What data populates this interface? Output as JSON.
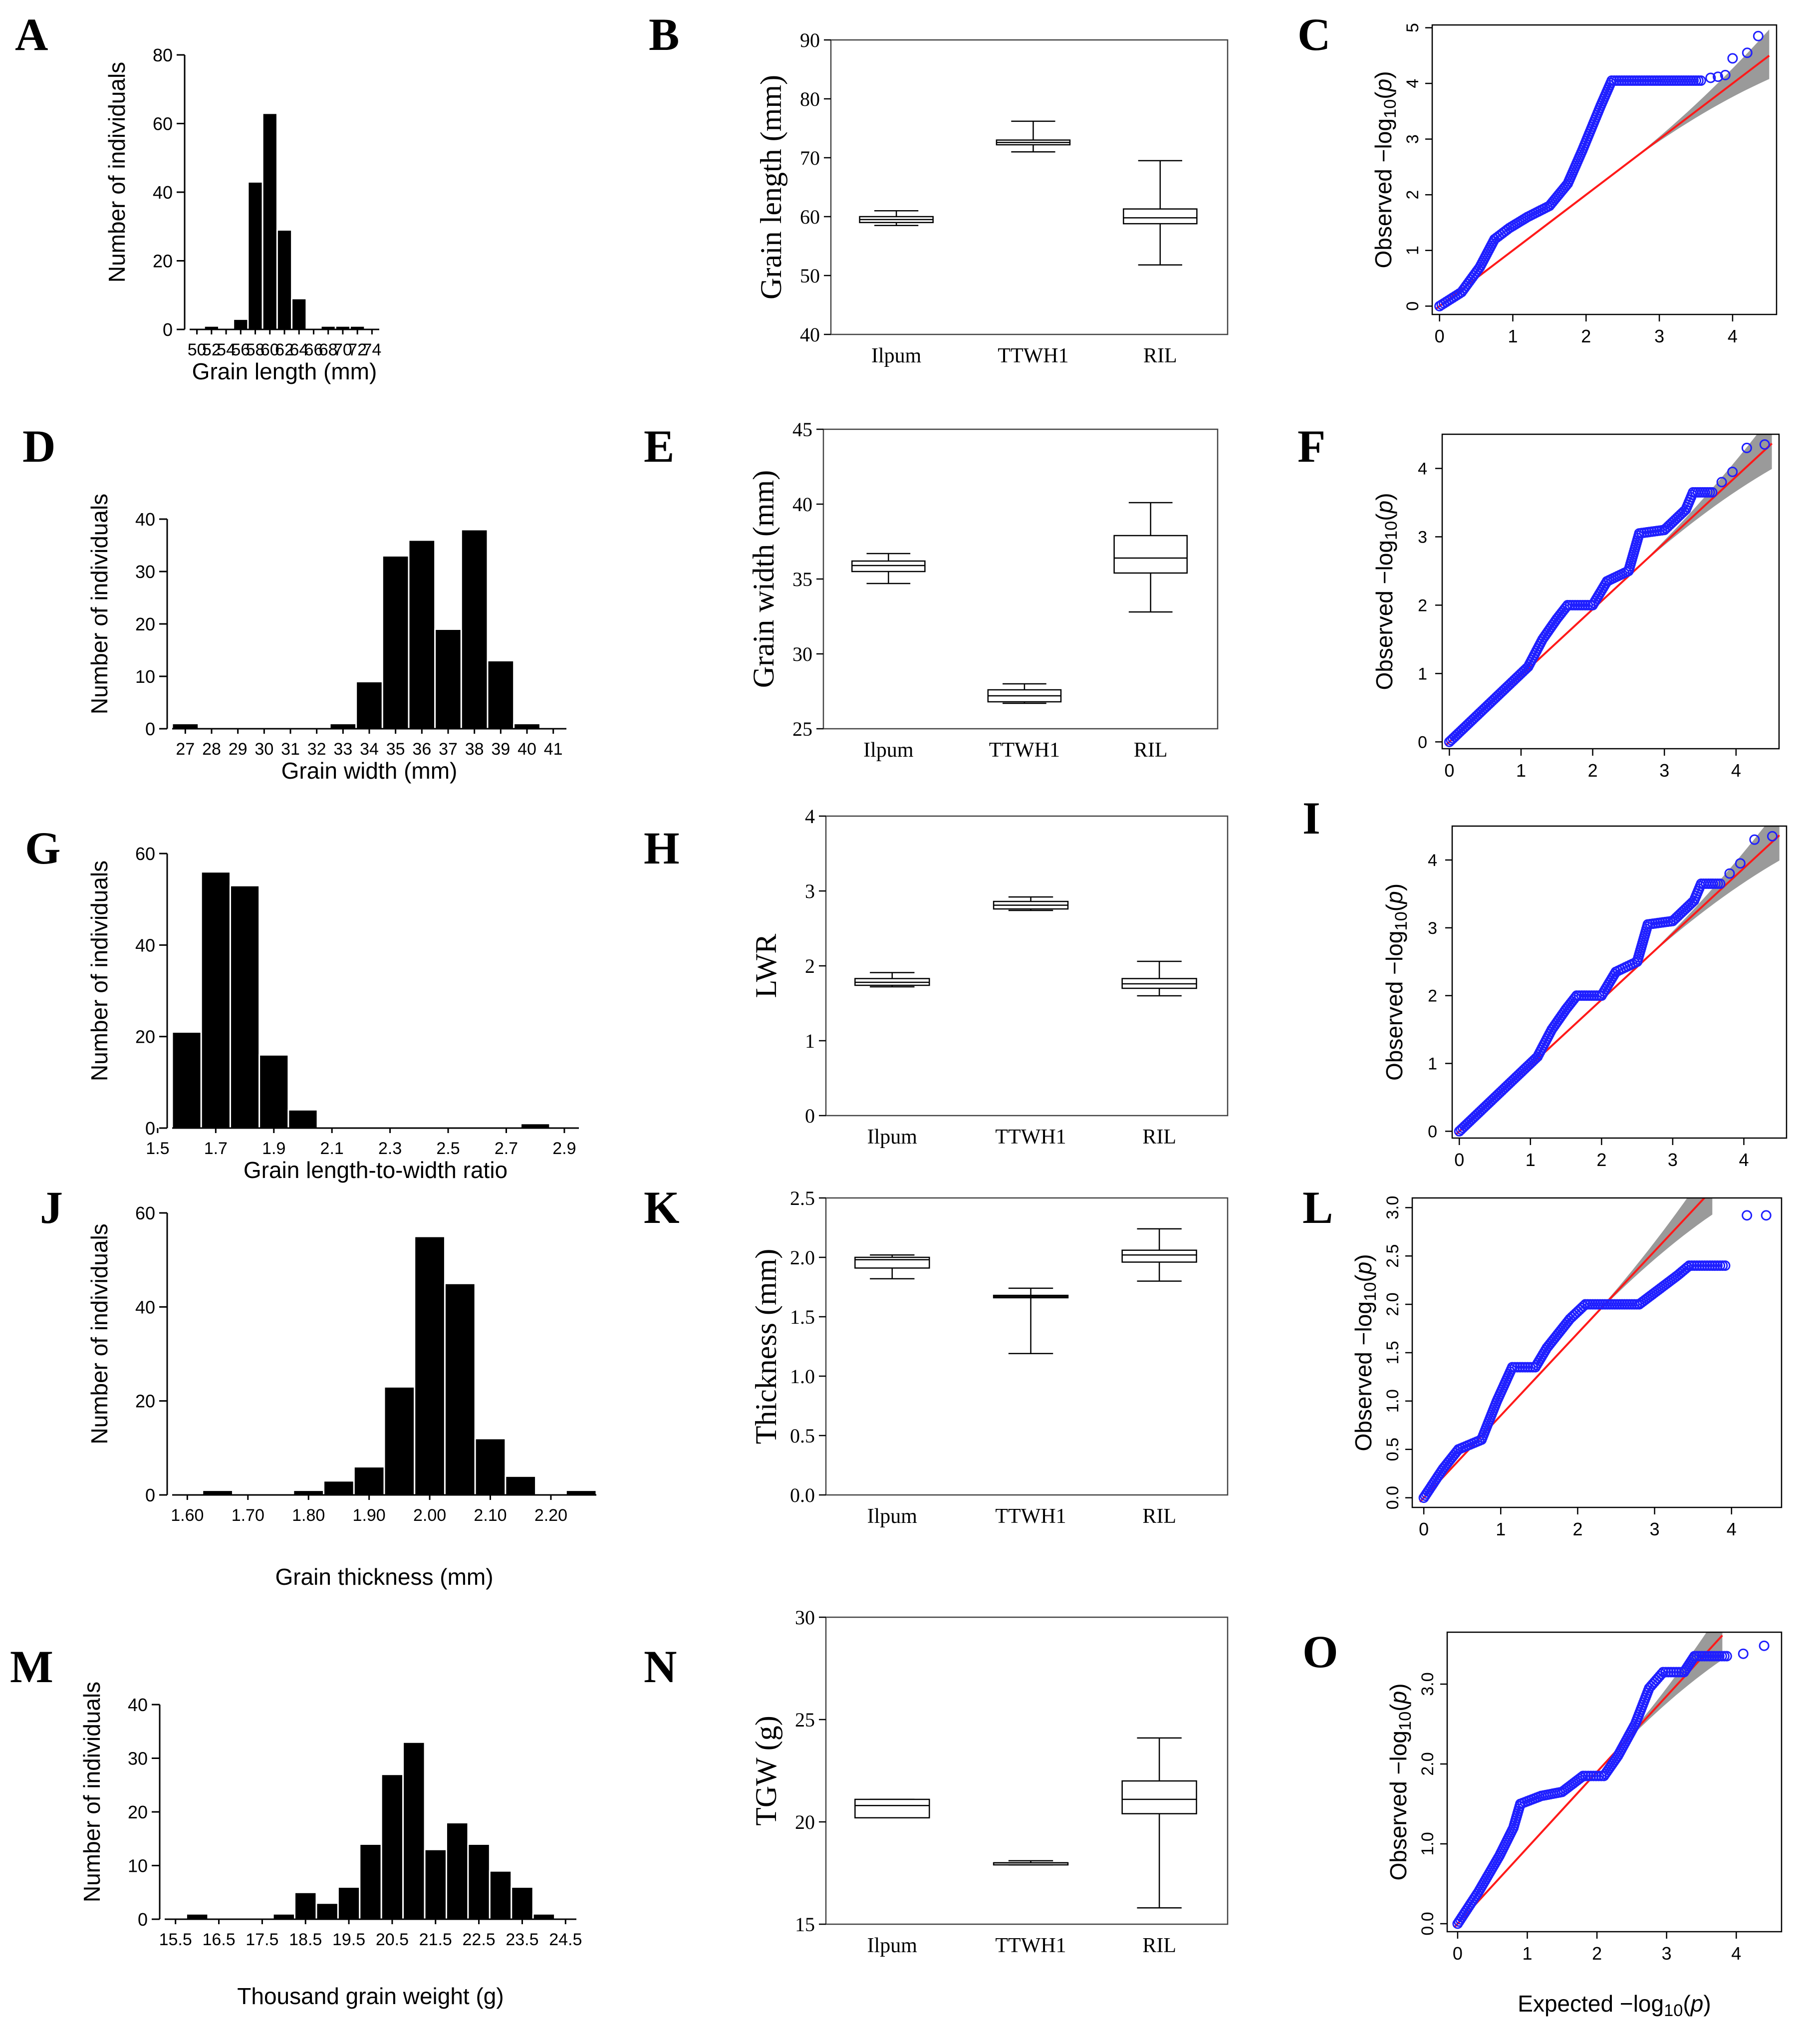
{
  "figure": {
    "colors": {
      "bar": "#000000",
      "point": "#1f1fff",
      "line": "#ff1a1a",
      "band": "#9a9a9a"
    },
    "expected_label": "Expected −log",
    "observed_label": "Observed −log"
  },
  "chart_data": [
    {
      "panel": "A",
      "type": "bar",
      "xlabel": "Grain length (mm)",
      "ylabel": "Number of individuals",
      "ylim": [
        0,
        80
      ],
      "yticks": [
        0,
        20,
        40,
        60,
        80
      ],
      "bins": [
        50,
        52,
        54,
        56,
        58,
        60,
        62,
        64,
        66,
        68,
        70,
        72,
        74
      ],
      "values": [
        0,
        1,
        0,
        3,
        43,
        63,
        29,
        9,
        0,
        1,
        1,
        1,
        0
      ],
      "xtick_labels": [
        "50",
        "52",
        "54",
        "56",
        "58",
        "60",
        "62",
        "64",
        "66",
        "68",
        "70",
        "72",
        "74"
      ]
    },
    {
      "panel": "B",
      "type": "box",
      "ylabel": "Grain length (mm)",
      "ylim": [
        40,
        90
      ],
      "yticks": [
        40,
        50,
        60,
        70,
        80,
        90
      ],
      "categories": [
        "Ilpum",
        "TTWH1",
        "RIL"
      ],
      "boxes": [
        {
          "min": 58.5,
          "q1": 59.0,
          "median": 59.5,
          "q3": 60.0,
          "max": 61.0
        },
        {
          "min": 71.0,
          "q1": 72.2,
          "median": 72.6,
          "q3": 73.0,
          "max": 76.2
        },
        {
          "min": 51.8,
          "q1": 58.8,
          "median": 59.8,
          "q3": 61.3,
          "max": 69.5
        }
      ]
    },
    {
      "panel": "C",
      "type": "qq",
      "xlim": [
        -0.1,
        4.6
      ],
      "ylim": [
        -0.15,
        5.05
      ],
      "xticks": [
        0,
        1,
        2,
        3,
        4
      ],
      "yticks": [
        0,
        1,
        2,
        3,
        4,
        5
      ],
      "yrotate": true,
      "xmax": 4.5,
      "slope": 1.0,
      "curve": [
        [
          0,
          0
        ],
        [
          0.3,
          0.25
        ],
        [
          0.55,
          0.7
        ],
        [
          0.75,
          1.2
        ],
        [
          0.95,
          1.4
        ],
        [
          1.2,
          1.6
        ],
        [
          1.5,
          1.8
        ],
        [
          1.75,
          2.2
        ],
        [
          1.95,
          2.8
        ],
        [
          2.2,
          3.6
        ],
        [
          2.35,
          4.05
        ],
        [
          3.0,
          4.05
        ],
        [
          3.6,
          4.05
        ]
      ],
      "extra": [
        [
          3.7,
          4.1
        ],
        [
          3.8,
          4.12
        ],
        [
          3.9,
          4.15
        ],
        [
          4.0,
          4.45
        ],
        [
          4.2,
          4.55
        ],
        [
          4.35,
          4.85
        ]
      ]
    },
    {
      "panel": "D",
      "type": "bar",
      "xlabel": "Grain width (mm)",
      "ylabel": "Number of individuals",
      "ylim": [
        0,
        40
      ],
      "yticks": [
        0,
        10,
        20,
        30,
        40
      ],
      "bins": [
        27,
        28,
        29,
        30,
        31,
        32,
        33,
        34,
        35,
        36,
        37,
        38,
        39,
        40,
        41
      ],
      "values": [
        1,
        0,
        0,
        0,
        0,
        0,
        1,
        9,
        33,
        36,
        19,
        38,
        13,
        1,
        0
      ],
      "xtick_labels": [
        "27",
        "28",
        "29",
        "30",
        "31",
        "32",
        "33",
        "34",
        "35",
        "36",
        "37",
        "38",
        "39",
        "40",
        "41"
      ]
    },
    {
      "panel": "E",
      "type": "box",
      "ylabel": "Grain width (mm)",
      "ylim": [
        25,
        45
      ],
      "yticks": [
        25,
        30,
        35,
        40,
        45
      ],
      "categories": [
        "Ilpum",
        "TTWH1",
        "RIL"
      ],
      "boxes": [
        {
          "min": 34.7,
          "q1": 35.5,
          "median": 35.9,
          "q3": 36.2,
          "max": 36.7
        },
        {
          "min": 26.7,
          "q1": 26.8,
          "median": 27.2,
          "q3": 27.6,
          "max": 28.0
        },
        {
          "min": 32.8,
          "q1": 35.4,
          "median": 36.4,
          "q3": 37.9,
          "max": 40.1
        }
      ]
    },
    {
      "panel": "F",
      "type": "qq",
      "xlim": [
        -0.1,
        4.6
      ],
      "ylim": [
        -0.1,
        4.5
      ],
      "xticks": [
        0,
        1,
        2,
        3,
        4
      ],
      "yticks": [
        0,
        1,
        2,
        3,
        4
      ],
      "yrotate": false,
      "xmax": 4.5,
      "slope": 0.97,
      "curve": [
        [
          0,
          0
        ],
        [
          0.4,
          0.4
        ],
        [
          0.8,
          0.8
        ],
        [
          1.1,
          1.1
        ],
        [
          1.3,
          1.5
        ],
        [
          1.5,
          1.8
        ],
        [
          1.65,
          2.0
        ],
        [
          2.0,
          2.0
        ],
        [
          2.2,
          2.35
        ],
        [
          2.5,
          2.5
        ],
        [
          2.65,
          3.05
        ],
        [
          3.0,
          3.1
        ],
        [
          3.3,
          3.4
        ],
        [
          3.4,
          3.65
        ],
        [
          3.7,
          3.65
        ]
      ],
      "extra": [
        [
          3.8,
          3.8
        ],
        [
          3.95,
          3.95
        ],
        [
          4.15,
          4.3
        ],
        [
          4.4,
          4.35
        ]
      ]
    },
    {
      "panel": "G",
      "type": "bar",
      "xlabel": "Grain length-to-width ratio",
      "ylabel": "Number of individuals",
      "ylim": [
        0,
        60
      ],
      "yticks": [
        0,
        20,
        40,
        60
      ],
      "bins": [
        1.6,
        1.7,
        1.8,
        1.9,
        2.0,
        2.1,
        2.2,
        2.3,
        2.4,
        2.5,
        2.6,
        2.7,
        2.8,
        2.9
      ],
      "values": [
        21,
        56,
        53,
        16,
        4,
        0,
        0,
        0,
        0,
        0,
        0,
        0,
        1,
        0
      ],
      "xtick_labels": [
        "1.5",
        "1.7",
        "1.9",
        "2.1",
        "2.3",
        "2.5",
        "2.7",
        "2.9"
      ],
      "xtick_pos": [
        1.5,
        1.7,
        1.9,
        2.1,
        2.3,
        2.5,
        2.7,
        2.9
      ]
    },
    {
      "panel": "H",
      "type": "box",
      "ylabel": "LWR",
      "ylim": [
        0,
        4
      ],
      "yticks": [
        0,
        1,
        2,
        3,
        4
      ],
      "categories": [
        "Ilpum",
        "TTWH1",
        "RIL"
      ],
      "boxes": [
        {
          "min": 1.72,
          "q1": 1.74,
          "median": 1.78,
          "q3": 1.83,
          "max": 1.91
        },
        {
          "min": 2.74,
          "q1": 2.76,
          "median": 2.81,
          "q3": 2.86,
          "max": 2.92
        },
        {
          "min": 1.6,
          "q1": 1.7,
          "median": 1.76,
          "q3": 1.83,
          "max": 2.06
        }
      ]
    },
    {
      "panel": "I",
      "type": "qq",
      "xlim": [
        -0.1,
        4.6
      ],
      "ylim": [
        -0.1,
        4.5
      ],
      "xticks": [
        0,
        1,
        2,
        3,
        4
      ],
      "yticks": [
        0,
        1,
        2,
        3,
        4
      ],
      "yrotate": false,
      "xmax": 4.5,
      "slope": 0.97,
      "curve": [
        [
          0,
          0
        ],
        [
          0.4,
          0.4
        ],
        [
          0.8,
          0.8
        ],
        [
          1.1,
          1.1
        ],
        [
          1.3,
          1.5
        ],
        [
          1.5,
          1.8
        ],
        [
          1.65,
          2.0
        ],
        [
          2.0,
          2.0
        ],
        [
          2.2,
          2.35
        ],
        [
          2.5,
          2.5
        ],
        [
          2.65,
          3.05
        ],
        [
          3.0,
          3.1
        ],
        [
          3.3,
          3.4
        ],
        [
          3.4,
          3.65
        ],
        [
          3.7,
          3.65
        ]
      ],
      "extra": [
        [
          3.8,
          3.8
        ],
        [
          3.95,
          3.95
        ],
        [
          4.15,
          4.3
        ],
        [
          4.4,
          4.35
        ]
      ]
    },
    {
      "panel": "J",
      "type": "bar",
      "xlabel": "Grain thickness (mm)",
      "ylabel": "Number of individuals",
      "ylim": [
        0,
        60
      ],
      "yticks": [
        0,
        20,
        40,
        60
      ],
      "bins": [
        1.6,
        1.65,
        1.7,
        1.75,
        1.8,
        1.85,
        1.9,
        1.95,
        2.0,
        2.05,
        2.1,
        2.15,
        2.2,
        2.25
      ],
      "values": [
        0,
        1,
        0,
        0,
        1,
        3,
        6,
        23,
        55,
        45,
        12,
        4,
        0,
        1
      ],
      "xtick_labels": [
        "1.60",
        "1.70",
        "1.80",
        "1.90",
        "2.00",
        "2.10",
        "2.20"
      ],
      "xtick_pos": [
        1.6,
        1.7,
        1.8,
        1.9,
        2.0,
        2.1,
        2.2
      ]
    },
    {
      "panel": "K",
      "type": "box",
      "ylabel": "Thickness (mm)",
      "ylim": [
        0,
        2.5
      ],
      "yticks": [
        0.0,
        0.5,
        1.0,
        1.5,
        2.0,
        2.5
      ],
      "ytick_labels": [
        "0.0",
        "0.5",
        "1.0",
        "1.5",
        "2.0",
        "2.5"
      ],
      "categories": [
        "Ilpum",
        "TTWH1",
        "RIL"
      ],
      "boxes": [
        {
          "min": 1.82,
          "q1": 1.91,
          "median": 1.98,
          "q3": 2.0,
          "max": 2.02
        },
        {
          "min": 1.19,
          "q1": 1.66,
          "median": 1.67,
          "q3": 1.68,
          "max": 1.74
        },
        {
          "min": 1.8,
          "q1": 1.96,
          "median": 2.02,
          "q3": 2.06,
          "max": 2.24
        }
      ]
    },
    {
      "panel": "L",
      "type": "qq",
      "xlim": [
        -0.15,
        4.65
      ],
      "ylim": [
        -0.1,
        3.1
      ],
      "xticks": [
        0,
        1,
        2,
        3,
        4
      ],
      "yticks": [
        0,
        0.5,
        1.0,
        1.5,
        2.0,
        2.5,
        3.0
      ],
      "ytick_labels": [
        "0.0",
        "0.5",
        "1.0",
        "1.5",
        "2.0",
        "2.5",
        "3.0"
      ],
      "yrotate": true,
      "xmax": 3.75,
      "slope": 0.85,
      "curve": [
        [
          0,
          0
        ],
        [
          0.25,
          0.3
        ],
        [
          0.45,
          0.5
        ],
        [
          0.75,
          0.6
        ],
        [
          0.95,
          1.0
        ],
        [
          1.15,
          1.35
        ],
        [
          1.45,
          1.35
        ],
        [
          1.6,
          1.55
        ],
        [
          1.9,
          1.85
        ],
        [
          2.1,
          2.0
        ],
        [
          2.8,
          2.0
        ],
        [
          3.05,
          2.15
        ],
        [
          3.3,
          2.3
        ],
        [
          3.45,
          2.4
        ],
        [
          3.95,
          2.4
        ]
      ],
      "extra": [
        [
          4.2,
          2.92
        ],
        [
          4.45,
          2.92
        ]
      ]
    },
    {
      "panel": "M",
      "type": "bar",
      "xlabel": "Thousand grain weight (g)",
      "ylabel": "Number of individuals",
      "ylim": [
        0,
        40
      ],
      "yticks": [
        0,
        10,
        20,
        30,
        40
      ],
      "bins": [
        15.5,
        16.0,
        16.5,
        17.0,
        17.5,
        18.0,
        18.5,
        19.0,
        19.5,
        20.0,
        20.5,
        21.0,
        21.5,
        22.0,
        22.5,
        23.0,
        23.5,
        24.0,
        24.5
      ],
      "values": [
        0,
        1,
        0,
        0,
        0,
        1,
        5,
        3,
        6,
        14,
        27,
        33,
        13,
        18,
        14,
        9,
        6,
        1,
        0
      ],
      "xtick_labels": [
        "15.5",
        "16.5",
        "17.5",
        "18.5",
        "19.5",
        "20.5",
        "21.5",
        "22.5",
        "23.5",
        "24.5"
      ],
      "xtick_pos": [
        15.5,
        16.5,
        17.5,
        18.5,
        19.5,
        20.5,
        21.5,
        22.5,
        23.5,
        24.5
      ]
    },
    {
      "panel": "N",
      "type": "box",
      "ylabel": "TGW (g)",
      "ylim": [
        15,
        30
      ],
      "yticks": [
        15,
        20,
        25,
        30
      ],
      "categories": [
        "Ilpum",
        "TTWH1",
        "RIL"
      ],
      "boxes": [
        {
          "min": 20.2,
          "q1": 20.2,
          "median": 20.8,
          "q3": 21.1,
          "max": 21.1
        },
        {
          "min": 17.9,
          "q1": 17.9,
          "median": 18.0,
          "q3": 18.0,
          "max": 18.1
        },
        {
          "min": 15.8,
          "q1": 20.4,
          "median": 21.1,
          "q3": 22.0,
          "max": 24.1
        }
      ]
    },
    {
      "panel": "O",
      "type": "qq",
      "xlim": [
        -0.15,
        4.65
      ],
      "ylim": [
        -0.1,
        3.65
      ],
      "xticks": [
        0,
        1,
        2,
        3,
        4
      ],
      "yticks": [
        0,
        1.0,
        2.0,
        3.0
      ],
      "ytick_labels": [
        "0.0",
        "1.0",
        "2.0",
        "3.0"
      ],
      "yrotate": true,
      "xmax": 3.8,
      "slope": 0.95,
      "xlabel": "Expected −log",
      "curve": [
        [
          0,
          0
        ],
        [
          0.3,
          0.4
        ],
        [
          0.6,
          0.85
        ],
        [
          0.8,
          1.2
        ],
        [
          0.9,
          1.5
        ],
        [
          1.2,
          1.6
        ],
        [
          1.5,
          1.65
        ],
        [
          1.8,
          1.85
        ],
        [
          2.1,
          1.85
        ],
        [
          2.3,
          2.1
        ],
        [
          2.55,
          2.5
        ],
        [
          2.75,
          2.95
        ],
        [
          2.95,
          3.15
        ],
        [
          3.25,
          3.15
        ],
        [
          3.4,
          3.35
        ],
        [
          3.9,
          3.35
        ]
      ],
      "extra": [
        [
          4.1,
          3.38
        ],
        [
          4.4,
          3.48
        ]
      ]
    }
  ]
}
